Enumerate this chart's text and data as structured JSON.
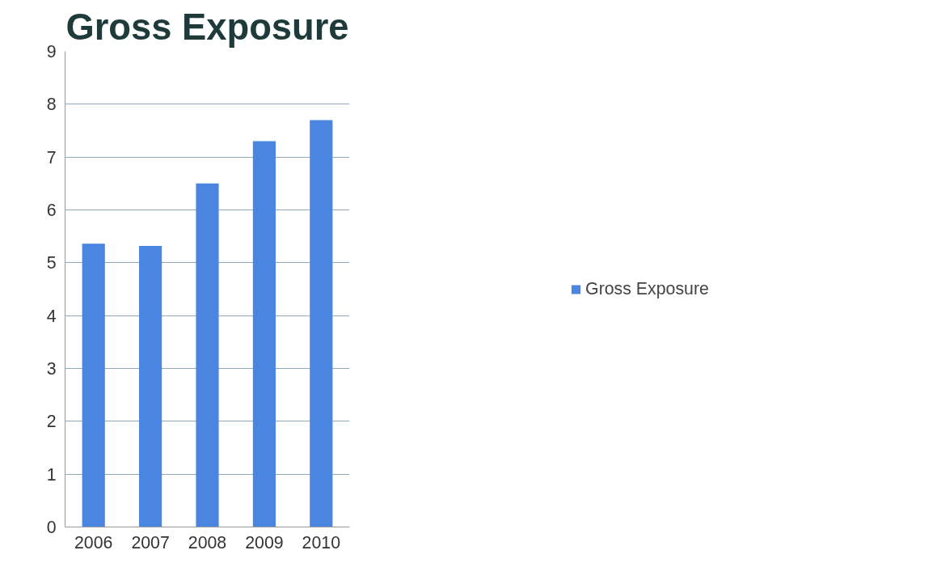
{
  "chart_data": {
    "type": "bar",
    "title": "Gross Exposure",
    "categories": [
      "2006",
      "2007",
      "2008",
      "2009",
      "2010"
    ],
    "series": [
      {
        "name": "Gross Exposure",
        "color": "#4a86e0",
        "values": [
          5.36,
          5.32,
          6.5,
          7.3,
          7.7
        ]
      }
    ],
    "ylim": [
      0,
      9
    ],
    "yticks": [
      0,
      1,
      2,
      3,
      4,
      5,
      6,
      7,
      8,
      9
    ],
    "grid": "y",
    "legend": "right"
  }
}
